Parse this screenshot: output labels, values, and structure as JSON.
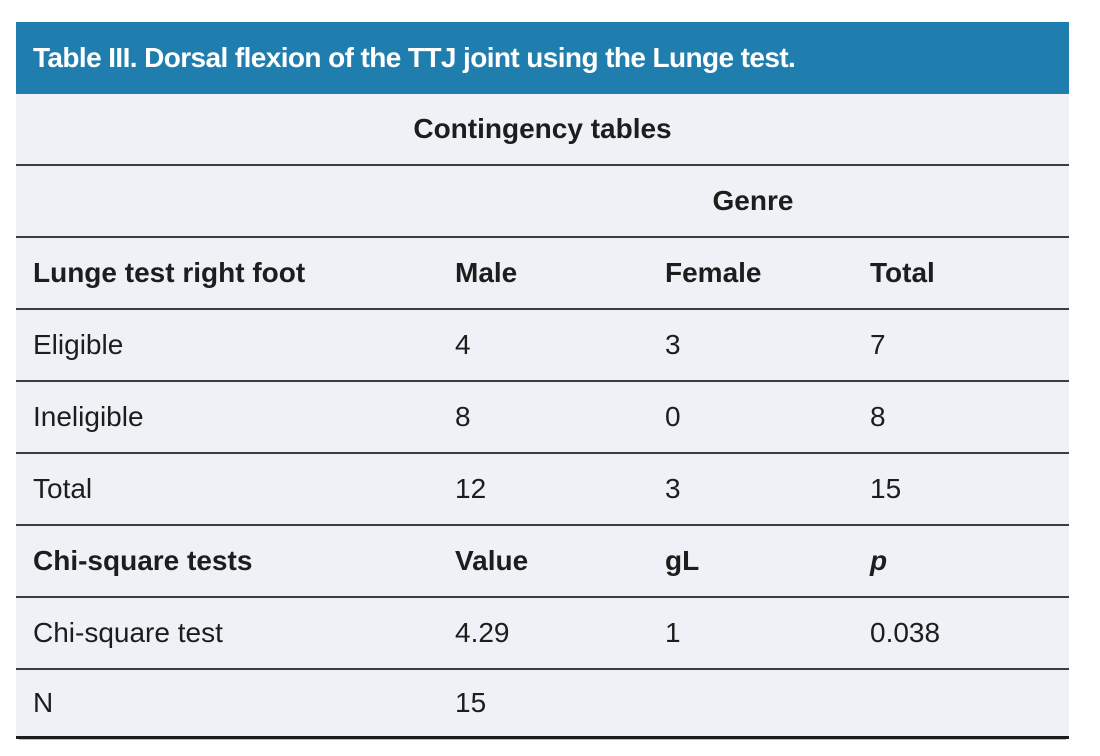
{
  "title": "Table III. Dorsal flexion of the TTJ joint using the Lunge test.",
  "subtitle": "Contingency tables",
  "genre": {
    "label": "Genre"
  },
  "contingency": {
    "columns": [
      "Lunge test right foot",
      "Male",
      "Female",
      "Total"
    ],
    "rows": [
      {
        "label": "Eligible",
        "male": "4",
        "female": "3",
        "total": "7"
      },
      {
        "label": "Ineligible",
        "male": "8",
        "female": "0",
        "total": "8"
      },
      {
        "label": "Total",
        "male": "12",
        "female": "3",
        "total": "15"
      }
    ]
  },
  "chi_square": {
    "columns": [
      "Chi-square tests",
      "Value",
      "gL",
      "p"
    ],
    "rows": [
      {
        "label": "Chi-square test",
        "value": "4.29",
        "gl": "1",
        "p": "0.038"
      },
      {
        "label": "N",
        "value": "15",
        "gl": "",
        "p": ""
      }
    ]
  },
  "colors": {
    "header_bg": "#1f7ead",
    "body_bg": "#eef1f5",
    "rule": "#3d3d3d",
    "text": "#1d1d1d"
  }
}
